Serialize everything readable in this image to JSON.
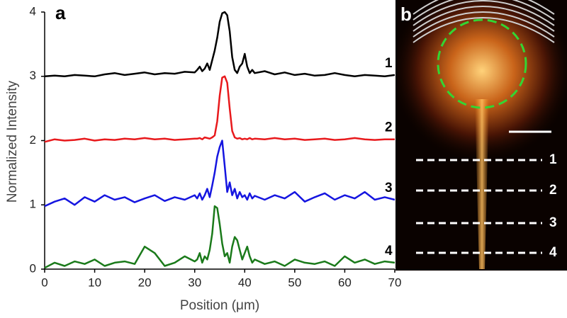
{
  "chart_data": {
    "type": "line",
    "panel_labels": [
      "a",
      "b"
    ],
    "xlabel": "Position (μm)",
    "ylabel": "Normalized Intensity",
    "x": [
      0,
      2,
      4,
      6,
      8,
      10,
      12,
      14,
      16,
      18,
      20,
      22,
      24,
      26,
      28,
      30,
      30.5,
      31,
      31.5,
      32,
      32.5,
      33,
      33.5,
      34,
      34.5,
      35,
      35.5,
      36,
      36.5,
      37,
      37.5,
      38,
      38.5,
      39,
      39.5,
      40,
      40.5,
      41,
      41.5,
      42,
      44,
      46,
      48,
      50,
      52,
      54,
      56,
      58,
      60,
      62,
      64,
      66,
      68,
      70
    ],
    "series": [
      {
        "name": "1",
        "color": "#000000",
        "values": [
          3.0,
          3.01,
          3.0,
          3.02,
          3.01,
          3.0,
          3.03,
          3.05,
          3.02,
          3.04,
          3.06,
          3.03,
          3.05,
          3.04,
          3.07,
          3.06,
          3.1,
          3.15,
          3.08,
          3.12,
          3.2,
          3.1,
          3.25,
          3.4,
          3.6,
          3.85,
          3.98,
          4.0,
          3.95,
          3.7,
          3.3,
          3.1,
          3.05,
          3.15,
          3.2,
          3.35,
          3.15,
          3.05,
          3.1,
          3.05,
          3.08,
          3.03,
          3.06,
          3.02,
          3.04,
          3.01,
          3.02,
          3.05,
          3.02,
          3.0,
          3.02,
          3.01,
          3.0,
          3.02
        ]
      },
      {
        "name": "2",
        "color": "#e8191c",
        "values": [
          1.98,
          2.02,
          2.0,
          2.01,
          2.03,
          2.0,
          2.02,
          2.01,
          2.03,
          2.02,
          2.04,
          2.02,
          2.03,
          2.01,
          2.02,
          2.03,
          2.03,
          2.04,
          2.02,
          2.05,
          2.04,
          2.03,
          2.05,
          2.08,
          2.3,
          2.7,
          2.98,
          3.0,
          2.9,
          2.5,
          2.15,
          2.05,
          2.03,
          2.04,
          2.02,
          2.03,
          2.02,
          2.04,
          2.02,
          2.03,
          2.02,
          2.04,
          2.02,
          2.03,
          2.01,
          2.02,
          2.03,
          2.01,
          2.02,
          2.04,
          2.02,
          2.01,
          2.02,
          2.02
        ]
      },
      {
        "name": "3",
        "color": "#1515e0",
        "values": [
          0.98,
          1.05,
          1.1,
          1.0,
          1.12,
          1.05,
          1.15,
          1.08,
          1.12,
          1.04,
          1.1,
          1.15,
          1.06,
          1.12,
          1.08,
          1.15,
          1.1,
          1.18,
          1.08,
          1.15,
          1.25,
          1.12,
          1.3,
          1.5,
          1.75,
          1.9,
          2.0,
          1.6,
          1.2,
          1.35,
          1.15,
          1.25,
          1.1,
          1.2,
          1.12,
          1.15,
          1.08,
          1.18,
          1.1,
          1.14,
          1.08,
          1.15,
          1.1,
          1.2,
          1.05,
          1.12,
          1.18,
          1.08,
          1.15,
          1.1,
          1.2,
          1.08,
          1.12,
          1.08
        ]
      },
      {
        "name": "4",
        "color": "#1a7a1a",
        "values": [
          0.02,
          0.1,
          0.05,
          0.12,
          0.08,
          0.15,
          0.05,
          0.1,
          0.12,
          0.08,
          0.35,
          0.25,
          0.05,
          0.1,
          0.2,
          0.12,
          0.15,
          0.25,
          0.1,
          0.2,
          0.15,
          0.3,
          0.55,
          0.98,
          0.95,
          0.7,
          0.4,
          0.2,
          0.25,
          0.1,
          0.35,
          0.5,
          0.45,
          0.3,
          0.15,
          0.25,
          0.35,
          0.2,
          0.1,
          0.15,
          0.08,
          0.12,
          0.05,
          0.15,
          0.1,
          0.08,
          0.12,
          0.05,
          0.2,
          0.1,
          0.15,
          0.08,
          0.12,
          0.1
        ]
      }
    ],
    "xlim": [
      0,
      70
    ],
    "xticks": [
      0,
      10,
      20,
      30,
      40,
      50,
      60,
      70
    ],
    "ylim": [
      0,
      4
    ],
    "yticks": [
      0,
      1,
      2,
      3,
      4
    ],
    "grid": false
  }
}
